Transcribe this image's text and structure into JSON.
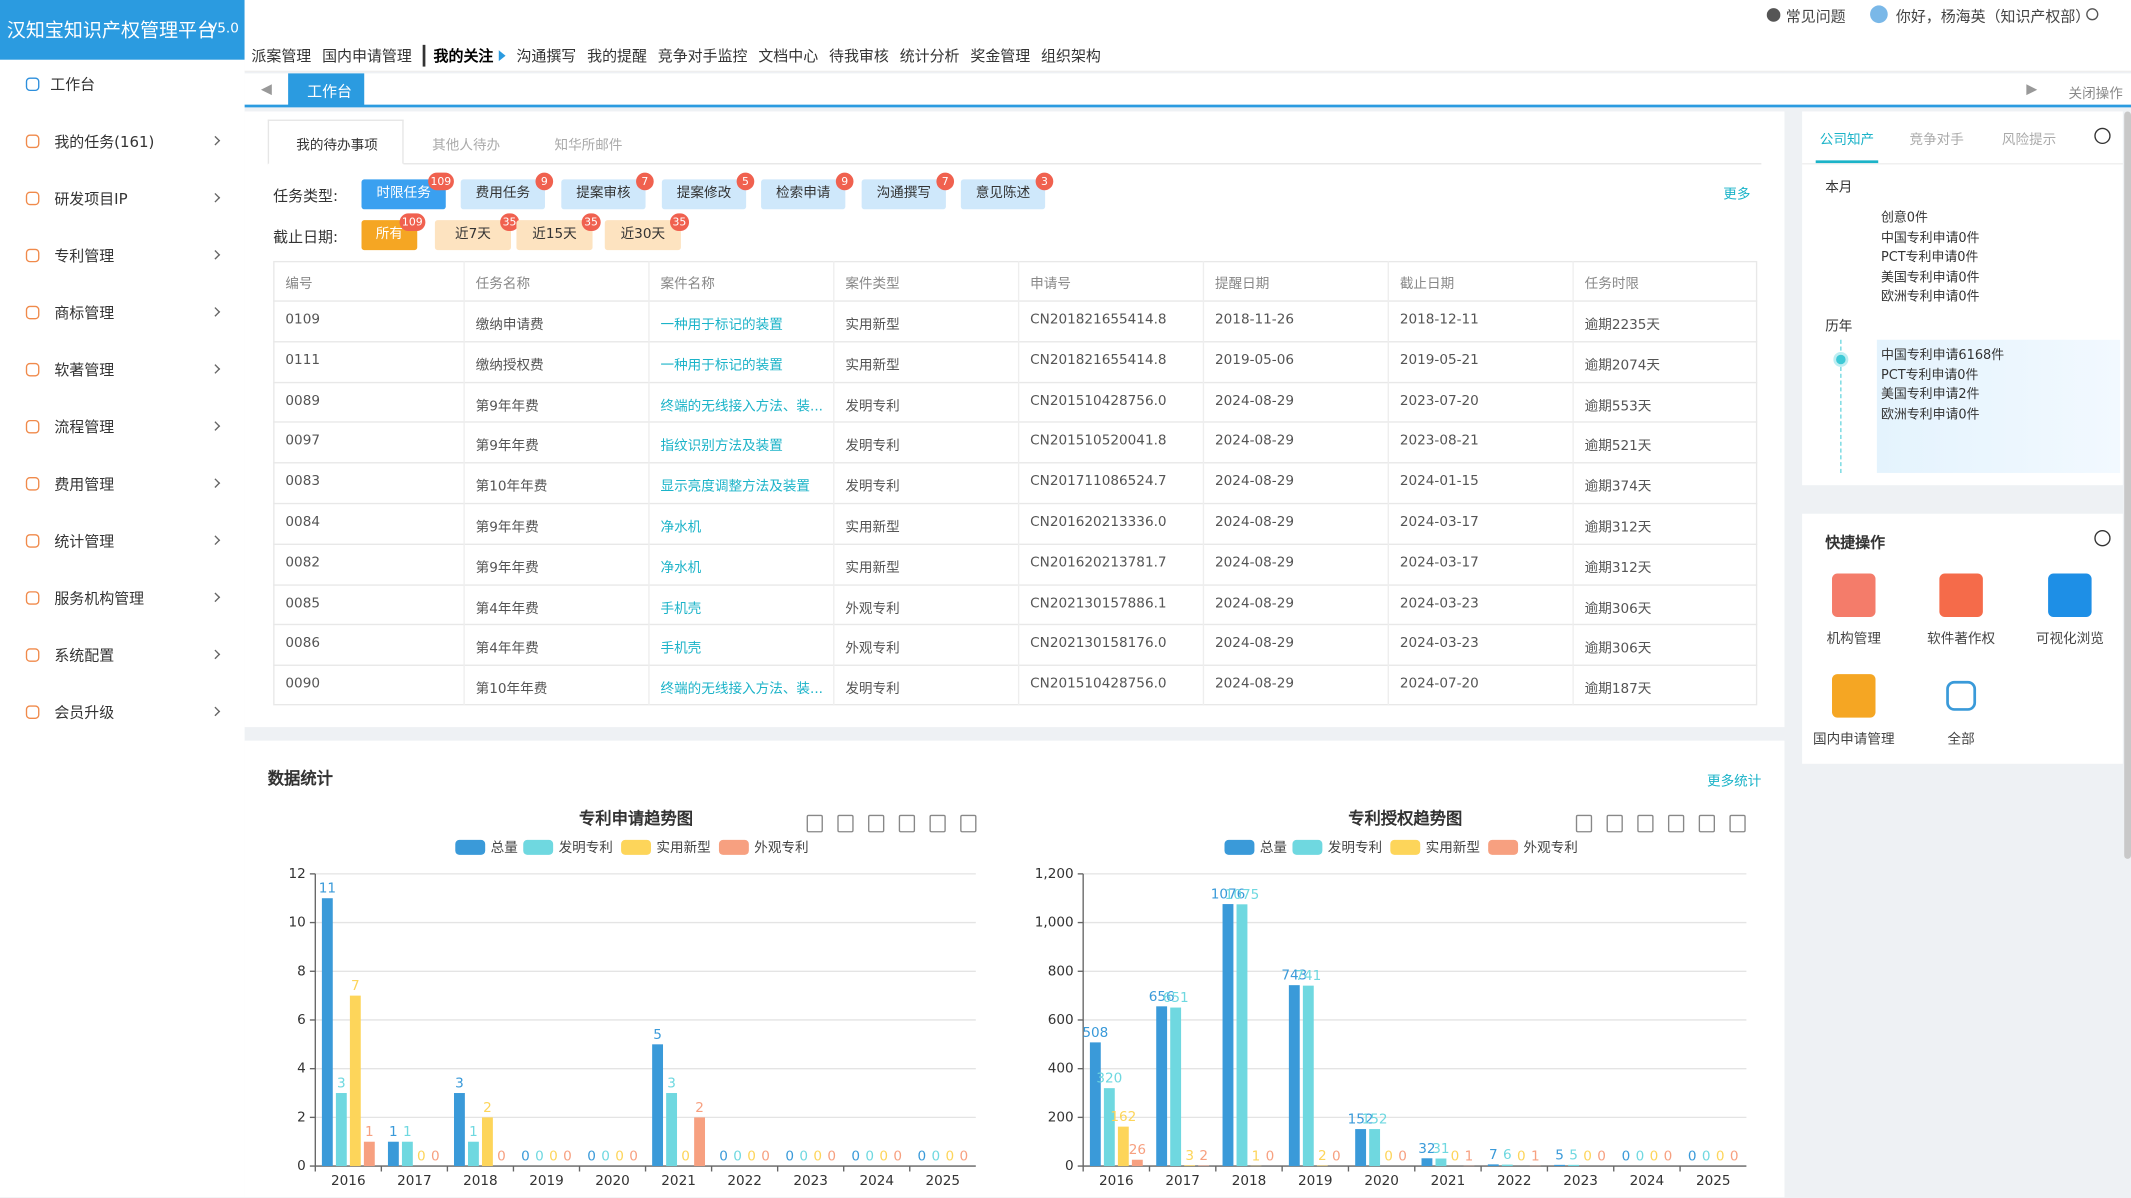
{
  "header": {
    "logo": "汉知宝知识产权管理平台",
    "version": "V5.0",
    "help": "常见问题",
    "user": "你好，杨海英（知识产权部）"
  },
  "top_nav": [
    "派案管理",
    "国内申请管理",
    "我的关注",
    "沟通撰写",
    "我的提醒",
    "竞争对手监控",
    "文档中心",
    "待我审核",
    "统计分析",
    "奖金管理",
    "组织架构"
  ],
  "sidebar": [
    "工作台",
    "我的任务(161)",
    "研发项目IP",
    "专利管理",
    "商标管理",
    "软著管理",
    "流程管理",
    "费用管理",
    "统计管理",
    "服务机构管理",
    "系统配置",
    "会员升级"
  ],
  "tabs": {
    "active": "工作台",
    "close_ops": "关闭操作"
  },
  "todo": {
    "tabs": [
      "我的待办事项",
      "其他人待办",
      "知华所邮件"
    ],
    "type_label": "任务类型:",
    "types": [
      {
        "label": "时限任务",
        "count": 109
      },
      {
        "label": "费用任务",
        "count": 9
      },
      {
        "label": "提案审核",
        "count": 7
      },
      {
        "label": "提案修改",
        "count": 5
      },
      {
        "label": "检索申请",
        "count": 9
      },
      {
        "label": "沟通撰写",
        "count": 7
      },
      {
        "label": "意见陈述",
        "count": 3
      }
    ],
    "more": "更多",
    "date_label": "截止日期:",
    "dates": [
      {
        "label": "所有",
        "count": 109
      },
      {
        "label": "近7天",
        "count": 35
      },
      {
        "label": "近15天",
        "count": 35
      },
      {
        "label": "近30天",
        "count": 35
      }
    ],
    "columns": [
      "编号",
      "任务名称",
      "案件名称",
      "案件类型",
      "申请号",
      "提醒日期",
      "截止日期",
      "任务时限"
    ],
    "rows": [
      [
        "0109",
        "缴纳申请费",
        "一种用于标记的装置",
        "实用新型",
        "CN201821655414.8",
        "2018-11-26",
        "2018-12-11",
        "逾期2235天"
      ],
      [
        "0111",
        "缴纳授权费",
        "一种用于标记的装置",
        "实用新型",
        "CN201821655414.8",
        "2019-05-06",
        "2019-05-21",
        "逾期2074天"
      ],
      [
        "0089",
        "第9年年费",
        "终端的无线接入方法、装...",
        "发明专利",
        "CN201510428756.0",
        "2024-08-29",
        "2023-07-20",
        "逾期553天"
      ],
      [
        "0097",
        "第9年年费",
        "指纹识别方法及装置",
        "发明专利",
        "CN201510520041.8",
        "2024-08-29",
        "2023-08-21",
        "逾期521天"
      ],
      [
        "0083",
        "第10年年费",
        "显示亮度调整方法及装置",
        "发明专利",
        "CN201711086524.7",
        "2024-08-29",
        "2024-01-15",
        "逾期374天"
      ],
      [
        "0084",
        "第9年年费",
        "净水机",
        "实用新型",
        "CN201620213336.0",
        "2024-08-29",
        "2024-03-17",
        "逾期312天"
      ],
      [
        "0082",
        "第9年年费",
        "净水机",
        "实用新型",
        "CN201620213781.7",
        "2024-08-29",
        "2024-03-17",
        "逾期312天"
      ],
      [
        "0085",
        "第4年年费",
        "手机壳",
        "外观专利",
        "CN202130157886.1",
        "2024-08-29",
        "2024-03-23",
        "逾期306天"
      ],
      [
        "0086",
        "第4年年费",
        "手机壳",
        "外观专利",
        "CN202130158176.0",
        "2024-08-29",
        "2024-03-23",
        "逾期306天"
      ],
      [
        "0090",
        "第10年年费",
        "终端的无线接入方法、装...",
        "发明专利",
        "CN201510428756.0",
        "2024-08-29",
        "2024-07-20",
        "逾期187天"
      ]
    ]
  },
  "stats": {
    "title": "数据统计",
    "more": "更多统计"
  },
  "right_panel": {
    "tabs": [
      "公司知产",
      "竞争对手",
      "风险提示"
    ],
    "this_month": "本月",
    "month_items": [
      "创意0件",
      "中国专利申请0件",
      "PCT专利申请0件",
      "美国专利申请0件",
      "欧洲专利申请0件"
    ],
    "history": "历年",
    "history_items": [
      "中国专利申请6168件",
      "PCT专利申请0件",
      "美国专利申请2件",
      "欧洲专利申请0件"
    ],
    "quick_title": "快捷操作",
    "quick_items": [
      "机构管理",
      "软件著作权",
      "可视化浏览",
      "国内申请管理",
      "全部"
    ]
  },
  "chart_data": [
    {
      "type": "bar",
      "title": "专利申请趋势图",
      "categories": [
        "2016",
        "2017",
        "2018",
        "2019",
        "2020",
        "2021",
        "2022",
        "2023",
        "2024",
        "2025"
      ],
      "series": [
        {
          "name": "总量",
          "color": "#3a9ad9",
          "values": [
            11,
            1,
            3,
            0,
            0,
            5,
            0,
            0,
            0,
            0
          ]
        },
        {
          "name": "发明专利",
          "color": "#6fd8e0",
          "values": [
            3,
            1,
            1,
            0,
            0,
            3,
            0,
            0,
            0,
            0
          ]
        },
        {
          "name": "实用新型",
          "color": "#fdd55a",
          "values": [
            7,
            0,
            2,
            0,
            0,
            0,
            0,
            0,
            0,
            0
          ]
        },
        {
          "name": "外观专利",
          "color": "#f7a080",
          "values": [
            1,
            0,
            0,
            0,
            0,
            2,
            0,
            0,
            0,
            0
          ]
        }
      ],
      "ylim": [
        0,
        12
      ],
      "yticks": [
        0,
        2,
        4,
        6,
        8,
        10,
        12
      ],
      "grid": true
    },
    {
      "type": "bar",
      "title": "专利授权趋势图",
      "categories": [
        "2016",
        "2017",
        "2018",
        "2019",
        "2020",
        "2021",
        "2022",
        "2023",
        "2024",
        "2025"
      ],
      "series": [
        {
          "name": "总量",
          "color": "#3a9ad9",
          "values": [
            508,
            656,
            1076,
            743,
            152,
            32,
            7,
            5,
            0,
            0
          ]
        },
        {
          "name": "发明专利",
          "color": "#6fd8e0",
          "values": [
            320,
            651,
            1075,
            741,
            152,
            31,
            6,
            5,
            0,
            0
          ]
        },
        {
          "name": "实用新型",
          "color": "#fdd55a",
          "values": [
            162,
            3,
            1,
            2,
            0,
            0,
            0,
            0,
            0,
            0
          ]
        },
        {
          "name": "外观专利",
          "color": "#f7a080",
          "values": [
            26,
            2,
            0,
            0,
            0,
            1,
            1,
            0,
            0,
            0
          ]
        }
      ],
      "ylim": [
        0,
        1200
      ],
      "yticks": [
        0,
        200,
        400,
        600,
        800,
        {
          "value": 1000,
          "label": "1,000"
        },
        {
          "value": 1200,
          "label": "1,200"
        }
      ],
      "grid": true
    }
  ]
}
